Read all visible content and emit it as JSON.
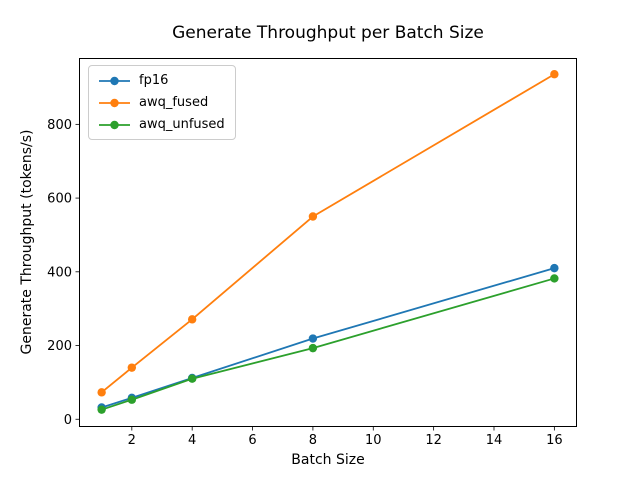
{
  "figure": {
    "background": "#ffffff",
    "axis_color": "#000000",
    "text_color": "#000000",
    "legend_border_color": "#cccccc"
  },
  "chart_data": {
    "type": "line",
    "title": "Generate Throughput per Batch Size",
    "xlabel": "Batch Size",
    "ylabel": "Generate Throughput (tokens/s)",
    "x": [
      1,
      2,
      4,
      8,
      16
    ],
    "series": [
      {
        "name": "fp16",
        "color": "#1f77b4",
        "values": [
          32,
          58,
          112,
          219,
          410
        ]
      },
      {
        "name": "awq_fused",
        "color": "#ff7f0e",
        "values": [
          73,
          140,
          271,
          550,
          936
        ]
      },
      {
        "name": "awq_unfused",
        "color": "#2ca02c",
        "values": [
          26,
          53,
          110,
          193,
          382
        ]
      }
    ],
    "xticks": [
      2,
      4,
      6,
      8,
      10,
      12,
      14,
      16
    ],
    "yticks": [
      0,
      200,
      400,
      600,
      800
    ],
    "xlim": [
      0.25,
      16.75
    ],
    "ylim": [
      -21,
      980
    ],
    "grid": false,
    "marker": "circle",
    "legend": {
      "position": "upper left",
      "entries": [
        "fp16",
        "awq_fused",
        "awq_unfused"
      ]
    }
  }
}
